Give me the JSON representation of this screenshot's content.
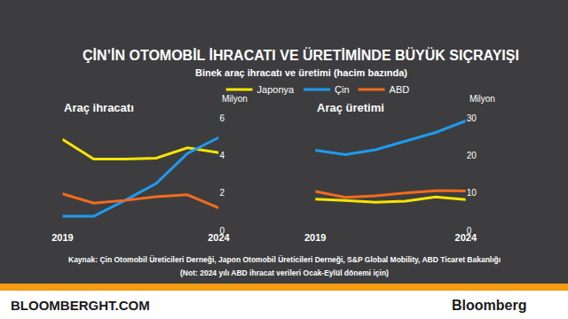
{
  "title": "ÇİN’İN OTOMOBİL İHRACATI VE ÜRETİMİNDE BÜYÜK SIÇRAYIŞI",
  "subtitle": "Binek araç ihracatı ve üretimi (hacim bazında)",
  "legend": "top",
  "chart_data": [
    {
      "type": "line",
      "title": "Araç ihracatı",
      "ylabel": "Milyon",
      "x": [
        2019,
        2020,
        2021,
        2022,
        2023,
        2024
      ],
      "xlim": [
        2019,
        2024
      ],
      "xticks": [
        2019,
        2024
      ],
      "ylim": [
        0,
        6
      ],
      "yticks": [
        0,
        2,
        4,
        6
      ],
      "grid": false,
      "series": [
        {
          "name": "Japonya",
          "color": "#f5e400",
          "values": [
            4.85,
            3.8,
            3.8,
            3.85,
            4.4,
            4.15
          ]
        },
        {
          "name": "Çin",
          "color": "#1e9bef",
          "values": [
            0.75,
            0.75,
            1.6,
            2.5,
            4.1,
            4.95
          ]
        },
        {
          "name": "ABD",
          "color": "#f26b1d",
          "values": [
            1.95,
            1.45,
            1.6,
            1.8,
            1.9,
            1.2
          ]
        }
      ]
    },
    {
      "type": "line",
      "title": "Araç üretimi",
      "ylabel": "Milyon",
      "x": [
        2019,
        2020,
        2021,
        2022,
        2023,
        2024
      ],
      "xlim": [
        2019,
        2024
      ],
      "xticks": [
        2019,
        2024
      ],
      "ylim": [
        0,
        30
      ],
      "yticks": [
        0,
        10,
        20,
        30
      ],
      "grid": false,
      "series": [
        {
          "name": "Japonya",
          "color": "#f5e400",
          "values": [
            8.3,
            8.0,
            7.5,
            7.8,
            8.9,
            8.2
          ]
        },
        {
          "name": "Çin",
          "color": "#1e9bef",
          "values": [
            21.4,
            20.2,
            21.5,
            23.8,
            26.1,
            29.2
          ]
        },
        {
          "name": "ABD",
          "color": "#f26b1d",
          "values": [
            10.4,
            8.8,
            9.2,
            10.0,
            10.6,
            10.5
          ]
        }
      ]
    }
  ],
  "source": "Kaynak: Çin Otomobil Üreticileri Derneği, Japon Otomobil Üreticileri Derneği, S&P Global Mobility, ABD Ticaret Bakanlığı",
  "note": "(Not: 2024 yılı ABD ihracat verileri Ocak-Eylül dönemi için)",
  "footer": {
    "site": "BLOOMBERGHT.COM",
    "brand": "Bloomberg"
  }
}
